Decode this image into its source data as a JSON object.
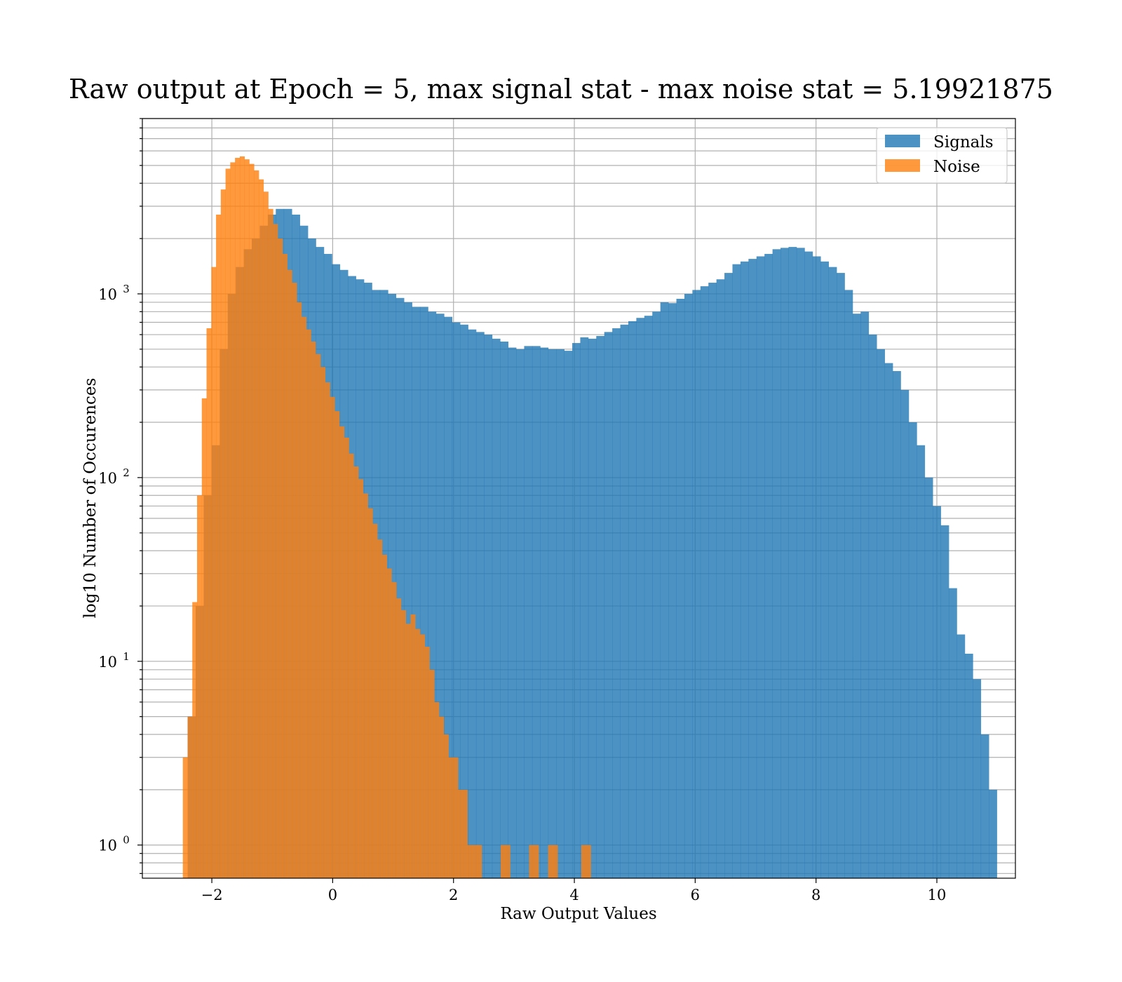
{
  "chart_data": {
    "type": "bar",
    "title": "Raw output at Epoch = 5, max signal stat - max noise stat = 5.19921875",
    "xlabel": "Raw Output Values",
    "ylabel": "log10 Number of Occurences",
    "xlim": [
      -3.15,
      11.3
    ],
    "ylim": [
      0.66,
      9000
    ],
    "yscale": "log",
    "grid": true,
    "legend_position": "top-right",
    "x_ticks": [
      -2,
      0,
      2,
      4,
      6,
      8,
      10
    ],
    "x_tick_labels": [
      "−2",
      "0",
      "2",
      "4",
      "6",
      "8",
      "10"
    ],
    "y_ticks": [
      {
        "value": 1,
        "base": "10",
        "exp": "0"
      },
      {
        "value": 10,
        "base": "10",
        "exp": "1"
      },
      {
        "value": 100,
        "base": "10",
        "exp": "2"
      },
      {
        "value": 1000,
        "base": "10",
        "exp": "3"
      }
    ],
    "series": [
      {
        "name": "Signals",
        "color": "#1f77b4",
        "opacity": 0.8,
        "bin_start": -2.4,
        "bin_width": 0.1326,
        "values": [
          5,
          20,
          80,
          150,
          500,
          1000,
          1400,
          1750,
          2000,
          2350,
          2700,
          2900,
          2900,
          2700,
          2350,
          2000,
          1800,
          1650,
          1450,
          1350,
          1250,
          1200,
          1150,
          1050,
          1050,
          1000,
          950,
          900,
          850,
          850,
          800,
          780,
          750,
          700,
          680,
          640,
          620,
          600,
          570,
          550,
          510,
          500,
          520,
          520,
          510,
          500,
          500,
          490,
          540,
          580,
          570,
          590,
          620,
          650,
          680,
          710,
          740,
          760,
          800,
          900,
          890,
          940,
          1000,
          1050,
          1100,
          1150,
          1200,
          1300,
          1450,
          1500,
          1550,
          1600,
          1650,
          1750,
          1780,
          1800,
          1780,
          1700,
          1600,
          1500,
          1400,
          1300,
          1050,
          780,
          800,
          600,
          500,
          420,
          380,
          300,
          200,
          150,
          100,
          70,
          55,
          25,
          14,
          11,
          8,
          4,
          2
        ]
      },
      {
        "name": "Noise",
        "color": "#ff7f0e",
        "opacity": 0.8,
        "bin_start": -2.48,
        "bin_width": 0.0785,
        "values": [
          3,
          5,
          21,
          80,
          270,
          650,
          1400,
          2700,
          3700,
          4800,
          5200,
          5500,
          5600,
          5400,
          5100,
          4700,
          4200,
          3600,
          2900,
          2400,
          2000,
          1650,
          1350,
          1150,
          900,
          750,
          640,
          550,
          470,
          400,
          330,
          275,
          230,
          190,
          165,
          135,
          115,
          98,
          82,
          68,
          56,
          46,
          38,
          32,
          27,
          22,
          19,
          16,
          18,
          15,
          14,
          12,
          9,
          6,
          5,
          4,
          3,
          3,
          2,
          2,
          1,
          1,
          1,
          0,
          0,
          0,
          0,
          1,
          1,
          0,
          0,
          0,
          0,
          1,
          1,
          0,
          0,
          1,
          1,
          0,
          0,
          0,
          0,
          0,
          1,
          1
        ]
      }
    ]
  }
}
